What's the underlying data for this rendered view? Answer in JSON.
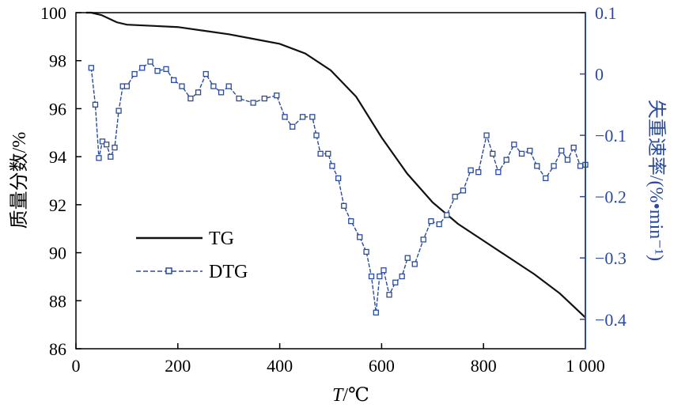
{
  "chart_data": {
    "type": "line",
    "xlabel_italic": "T",
    "xlabel_unit": "/℃",
    "ylabel": "质量分数/%",
    "y2label": "失重速率/(%•min⁻¹)",
    "xlim": [
      0,
      1000
    ],
    "ylim": [
      86,
      100
    ],
    "y2lim": [
      -0.448,
      0.1
    ],
    "xticks": [
      0,
      200,
      400,
      600,
      800,
      1000
    ],
    "xtick_labels": [
      "0",
      "200",
      "400",
      "600",
      "800",
      "1 000"
    ],
    "yticks": [
      86,
      88,
      90,
      92,
      94,
      96,
      98,
      100
    ],
    "y2ticks": [
      0.1,
      0,
      -0.1,
      -0.2,
      -0.3,
      -0.4
    ],
    "y2tick_labels": [
      "0.1",
      "0",
      "−0.1",
      "−0.2",
      "−0.3",
      "−0.4"
    ],
    "legend": {
      "placement": "center-left",
      "entries": [
        "TG",
        "DTG"
      ]
    },
    "colors": {
      "TG": "#111111",
      "DTG": "#2a4b9c",
      "axis_right": "#2a4b9c"
    },
    "series": [
      {
        "name": "TG",
        "axis": "left",
        "x": [
          20,
          30,
          50,
          80,
          100,
          150,
          200,
          250,
          300,
          350,
          400,
          450,
          500,
          550,
          600,
          650,
          700,
          750,
          800,
          850,
          900,
          950,
          1000
        ],
        "y": [
          100,
          100,
          99.9,
          99.6,
          99.5,
          99.45,
          99.4,
          99.25,
          99.1,
          98.9,
          98.7,
          98.3,
          97.6,
          96.5,
          94.8,
          93.3,
          92.1,
          91.2,
          90.5,
          89.8,
          89.1,
          88.3,
          87.3
        ]
      },
      {
        "name": "DTG",
        "axis": "right",
        "x": [
          30,
          38,
          45,
          52,
          60,
          68,
          76,
          84,
          92,
          100,
          115,
          130,
          146,
          160,
          177,
          192,
          208,
          225,
          240,
          255,
          270,
          285,
          300,
          320,
          348,
          370,
          394,
          410,
          425,
          445,
          464,
          472,
          480,
          495,
          503,
          515,
          526,
          540,
          557,
          570,
          580,
          589,
          596,
          604,
          615,
          627,
          640,
          651,
          665,
          682,
          697,
          713,
          728,
          744,
          760,
          775,
          790,
          806,
          818,
          829,
          845,
          860,
          875,
          891,
          905,
          922,
          938,
          953,
          965,
          977,
          990,
          1000
        ],
        "y": [
          0.01,
          -0.05,
          -0.137,
          -0.11,
          -0.115,
          -0.135,
          -0.12,
          -0.06,
          -0.02,
          -0.02,
          0,
          0.01,
          0.02,
          0.005,
          0.008,
          -0.01,
          -0.02,
          -0.04,
          -0.03,
          0,
          -0.02,
          -0.03,
          -0.02,
          -0.04,
          -0.047,
          -0.04,
          -0.035,
          -0.07,
          -0.086,
          -0.07,
          -0.07,
          -0.1,
          -0.13,
          -0.13,
          -0.15,
          -0.17,
          -0.215,
          -0.24,
          -0.266,
          -0.29,
          -0.33,
          -0.389,
          -0.33,
          -0.32,
          -0.36,
          -0.34,
          -0.33,
          -0.3,
          -0.31,
          -0.27,
          -0.24,
          -0.245,
          -0.23,
          -0.2,
          -0.19,
          -0.157,
          -0.16,
          -0.1,
          -0.13,
          -0.16,
          -0.14,
          -0.115,
          -0.13,
          -0.125,
          -0.15,
          -0.17,
          -0.15,
          -0.125,
          -0.14,
          -0.12,
          -0.15,
          -0.148
        ]
      }
    ]
  }
}
